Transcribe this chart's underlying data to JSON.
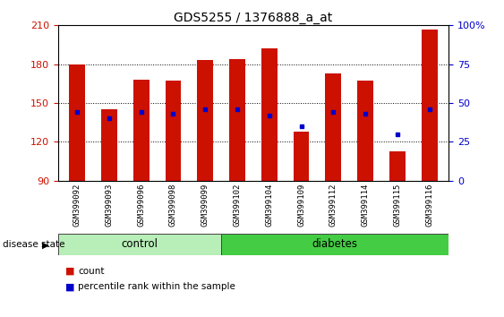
{
  "title": "GDS5255 / 1376888_a_at",
  "samples": [
    "GSM399092",
    "GSM399093",
    "GSM399096",
    "GSM399098",
    "GSM399099",
    "GSM399102",
    "GSM399104",
    "GSM399109",
    "GSM399112",
    "GSM399114",
    "GSM399115",
    "GSM399116"
  ],
  "count_values": [
    180,
    145,
    168,
    167,
    183,
    184,
    192,
    128,
    173,
    167,
    113,
    207
  ],
  "percentile_values": [
    44,
    40,
    44,
    43,
    46,
    46,
    42,
    35,
    44,
    43,
    30,
    46
  ],
  "ymin": 90,
  "ymax": 210,
  "yticks_left": [
    90,
    120,
    150,
    180,
    210
  ],
  "yticks_grid": [
    120,
    150,
    180
  ],
  "pct_yticks": [
    0,
    25,
    50,
    75,
    100
  ],
  "pct_ytick_labels": [
    "0",
    "25",
    "50",
    "75",
    "100%"
  ],
  "ctrl_count": 5,
  "diab_count": 7,
  "group_color_ctrl": "#AAEAAA",
  "group_color_diab": "#44CC44",
  "bar_color": "#CC1100",
  "dot_color": "#0000CC",
  "bar_width": 0.5,
  "left_tick_color": "#CC1100",
  "right_tick_color": "#0000CC",
  "fig_bg_color": "#FFFFFF",
  "plot_bg_color": "#FFFFFF",
  "xtick_bg_color": "#C8C8C8"
}
